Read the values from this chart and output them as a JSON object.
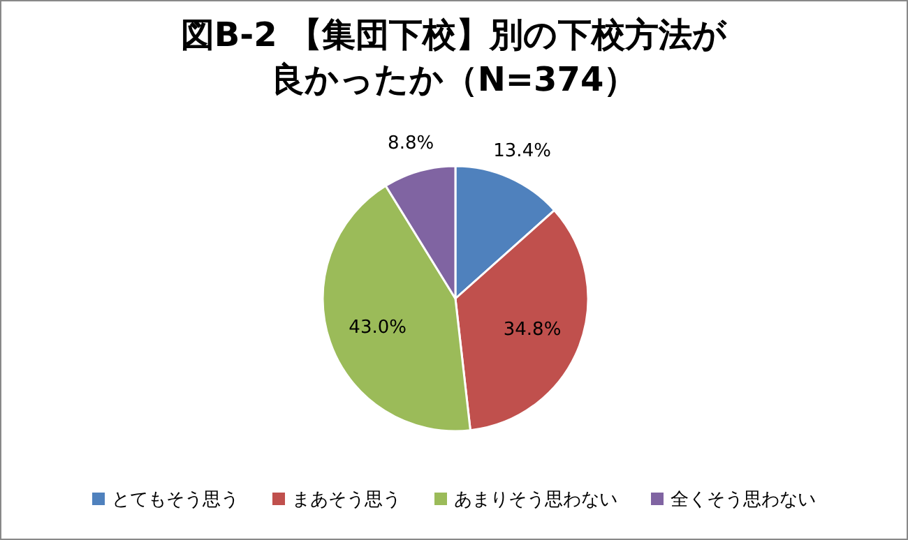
{
  "chart_data": {
    "type": "pie",
    "title": "図B-2 【集団下校】別の下校方法が良かったか（N=374）",
    "categories": [
      "とてもそう思う",
      "まあそう思う",
      "あまりそう思わない",
      "全くそう思わない"
    ],
    "values": [
      13.4,
      34.8,
      43.0,
      8.8
    ],
    "colors": [
      "#4f81bd",
      "#c0504d",
      "#9bbb59",
      "#8064a2"
    ],
    "value_labels": [
      "13.4%",
      "34.8%",
      "43.0%",
      "8.8%"
    ],
    "legend": "bottom"
  }
}
